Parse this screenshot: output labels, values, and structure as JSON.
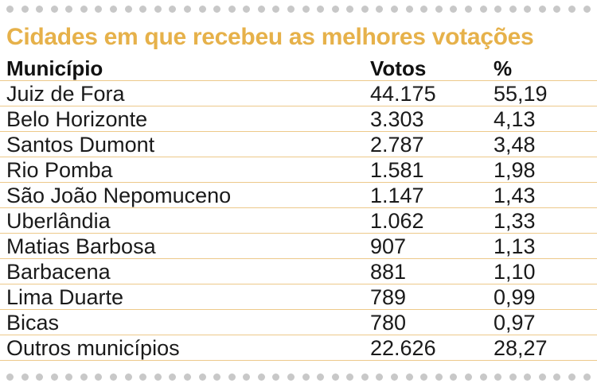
{
  "title": "Cidades em que recebeu as melhores votações",
  "headers": {
    "municipio": "Município",
    "votos": "Votos",
    "pct": "%"
  },
  "rows": [
    {
      "municipio": "Juiz de Fora",
      "votos": "44.175",
      "pct": "55,19"
    },
    {
      "municipio": "Belo Horizonte",
      "votos": "3.303",
      "pct": "4,13"
    },
    {
      "municipio": "Santos Dumont",
      "votos": "2.787",
      "pct": "3,48"
    },
    {
      "municipio": "Rio Pomba",
      "votos": "1.581",
      "pct": "1,98"
    },
    {
      "municipio": "São João Nepomuceno",
      "votos": "1.147",
      "pct": "1,43"
    },
    {
      "municipio": "Uberlândia",
      "votos": "1.062",
      "pct": "1,33"
    },
    {
      "municipio": "Matias Barbosa",
      "votos": "907",
      "pct": "1,13"
    },
    {
      "municipio": "Barbacena",
      "votos": "881",
      "pct": "1,10"
    },
    {
      "municipio": "Lima Duarte",
      "votos": "789",
      "pct": "0,99"
    },
    {
      "municipio": "Bicas",
      "votos": "780",
      "pct": "0,97"
    },
    {
      "municipio": "Outros municípios",
      "votos": "22.626",
      "pct": "28,27"
    }
  ],
  "colors": {
    "title": "#e6b14a",
    "rule": "#edc98a",
    "dots": "#c8c8c8"
  }
}
